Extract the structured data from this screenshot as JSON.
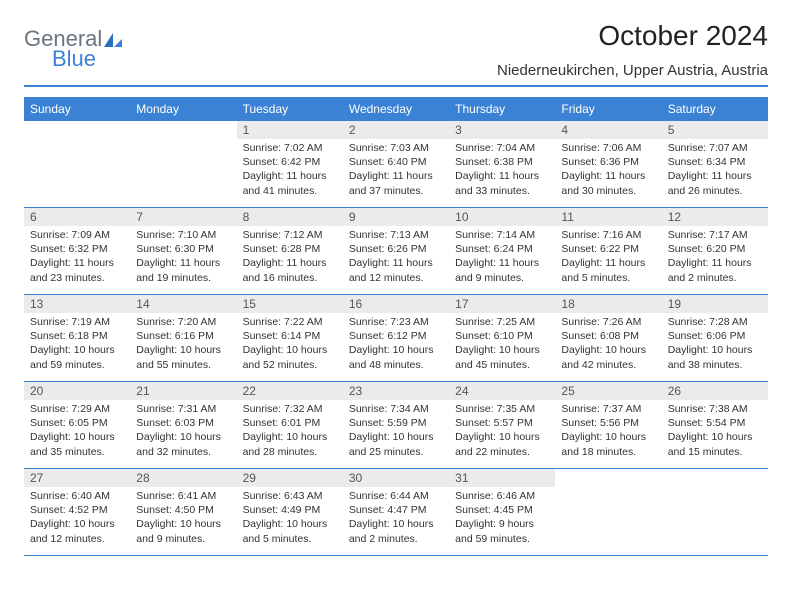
{
  "logo": {
    "part1": "General",
    "part2": "Blue"
  },
  "title": "October 2024",
  "location": "Niederneukirchen, Upper Austria, Austria",
  "colors": {
    "accent": "#3b82d4",
    "header_bg": "#3b82d4",
    "daynum_bg": "#ebebeb",
    "text": "#333333",
    "logo_gray": "#6b7580"
  },
  "weekdays": [
    "Sunday",
    "Monday",
    "Tuesday",
    "Wednesday",
    "Thursday",
    "Friday",
    "Saturday"
  ],
  "weeks": [
    [
      {
        "n": "",
        "sr": "",
        "ss": "",
        "dl": ""
      },
      {
        "n": "",
        "sr": "",
        "ss": "",
        "dl": ""
      },
      {
        "n": "1",
        "sr": "Sunrise: 7:02 AM",
        "ss": "Sunset: 6:42 PM",
        "dl": "Daylight: 11 hours and 41 minutes."
      },
      {
        "n": "2",
        "sr": "Sunrise: 7:03 AM",
        "ss": "Sunset: 6:40 PM",
        "dl": "Daylight: 11 hours and 37 minutes."
      },
      {
        "n": "3",
        "sr": "Sunrise: 7:04 AM",
        "ss": "Sunset: 6:38 PM",
        "dl": "Daylight: 11 hours and 33 minutes."
      },
      {
        "n": "4",
        "sr": "Sunrise: 7:06 AM",
        "ss": "Sunset: 6:36 PM",
        "dl": "Daylight: 11 hours and 30 minutes."
      },
      {
        "n": "5",
        "sr": "Sunrise: 7:07 AM",
        "ss": "Sunset: 6:34 PM",
        "dl": "Daylight: 11 hours and 26 minutes."
      }
    ],
    [
      {
        "n": "6",
        "sr": "Sunrise: 7:09 AM",
        "ss": "Sunset: 6:32 PM",
        "dl": "Daylight: 11 hours and 23 minutes."
      },
      {
        "n": "7",
        "sr": "Sunrise: 7:10 AM",
        "ss": "Sunset: 6:30 PM",
        "dl": "Daylight: 11 hours and 19 minutes."
      },
      {
        "n": "8",
        "sr": "Sunrise: 7:12 AM",
        "ss": "Sunset: 6:28 PM",
        "dl": "Daylight: 11 hours and 16 minutes."
      },
      {
        "n": "9",
        "sr": "Sunrise: 7:13 AM",
        "ss": "Sunset: 6:26 PM",
        "dl": "Daylight: 11 hours and 12 minutes."
      },
      {
        "n": "10",
        "sr": "Sunrise: 7:14 AM",
        "ss": "Sunset: 6:24 PM",
        "dl": "Daylight: 11 hours and 9 minutes."
      },
      {
        "n": "11",
        "sr": "Sunrise: 7:16 AM",
        "ss": "Sunset: 6:22 PM",
        "dl": "Daylight: 11 hours and 5 minutes."
      },
      {
        "n": "12",
        "sr": "Sunrise: 7:17 AM",
        "ss": "Sunset: 6:20 PM",
        "dl": "Daylight: 11 hours and 2 minutes."
      }
    ],
    [
      {
        "n": "13",
        "sr": "Sunrise: 7:19 AM",
        "ss": "Sunset: 6:18 PM",
        "dl": "Daylight: 10 hours and 59 minutes."
      },
      {
        "n": "14",
        "sr": "Sunrise: 7:20 AM",
        "ss": "Sunset: 6:16 PM",
        "dl": "Daylight: 10 hours and 55 minutes."
      },
      {
        "n": "15",
        "sr": "Sunrise: 7:22 AM",
        "ss": "Sunset: 6:14 PM",
        "dl": "Daylight: 10 hours and 52 minutes."
      },
      {
        "n": "16",
        "sr": "Sunrise: 7:23 AM",
        "ss": "Sunset: 6:12 PM",
        "dl": "Daylight: 10 hours and 48 minutes."
      },
      {
        "n": "17",
        "sr": "Sunrise: 7:25 AM",
        "ss": "Sunset: 6:10 PM",
        "dl": "Daylight: 10 hours and 45 minutes."
      },
      {
        "n": "18",
        "sr": "Sunrise: 7:26 AM",
        "ss": "Sunset: 6:08 PM",
        "dl": "Daylight: 10 hours and 42 minutes."
      },
      {
        "n": "19",
        "sr": "Sunrise: 7:28 AM",
        "ss": "Sunset: 6:06 PM",
        "dl": "Daylight: 10 hours and 38 minutes."
      }
    ],
    [
      {
        "n": "20",
        "sr": "Sunrise: 7:29 AM",
        "ss": "Sunset: 6:05 PM",
        "dl": "Daylight: 10 hours and 35 minutes."
      },
      {
        "n": "21",
        "sr": "Sunrise: 7:31 AM",
        "ss": "Sunset: 6:03 PM",
        "dl": "Daylight: 10 hours and 32 minutes."
      },
      {
        "n": "22",
        "sr": "Sunrise: 7:32 AM",
        "ss": "Sunset: 6:01 PM",
        "dl": "Daylight: 10 hours and 28 minutes."
      },
      {
        "n": "23",
        "sr": "Sunrise: 7:34 AM",
        "ss": "Sunset: 5:59 PM",
        "dl": "Daylight: 10 hours and 25 minutes."
      },
      {
        "n": "24",
        "sr": "Sunrise: 7:35 AM",
        "ss": "Sunset: 5:57 PM",
        "dl": "Daylight: 10 hours and 22 minutes."
      },
      {
        "n": "25",
        "sr": "Sunrise: 7:37 AM",
        "ss": "Sunset: 5:56 PM",
        "dl": "Daylight: 10 hours and 18 minutes."
      },
      {
        "n": "26",
        "sr": "Sunrise: 7:38 AM",
        "ss": "Sunset: 5:54 PM",
        "dl": "Daylight: 10 hours and 15 minutes."
      }
    ],
    [
      {
        "n": "27",
        "sr": "Sunrise: 6:40 AM",
        "ss": "Sunset: 4:52 PM",
        "dl": "Daylight: 10 hours and 12 minutes."
      },
      {
        "n": "28",
        "sr": "Sunrise: 6:41 AM",
        "ss": "Sunset: 4:50 PM",
        "dl": "Daylight: 10 hours and 9 minutes."
      },
      {
        "n": "29",
        "sr": "Sunrise: 6:43 AM",
        "ss": "Sunset: 4:49 PM",
        "dl": "Daylight: 10 hours and 5 minutes."
      },
      {
        "n": "30",
        "sr": "Sunrise: 6:44 AM",
        "ss": "Sunset: 4:47 PM",
        "dl": "Daylight: 10 hours and 2 minutes."
      },
      {
        "n": "31",
        "sr": "Sunrise: 6:46 AM",
        "ss": "Sunset: 4:45 PM",
        "dl": "Daylight: 9 hours and 59 minutes."
      },
      {
        "n": "",
        "sr": "",
        "ss": "",
        "dl": ""
      },
      {
        "n": "",
        "sr": "",
        "ss": "",
        "dl": ""
      }
    ]
  ]
}
